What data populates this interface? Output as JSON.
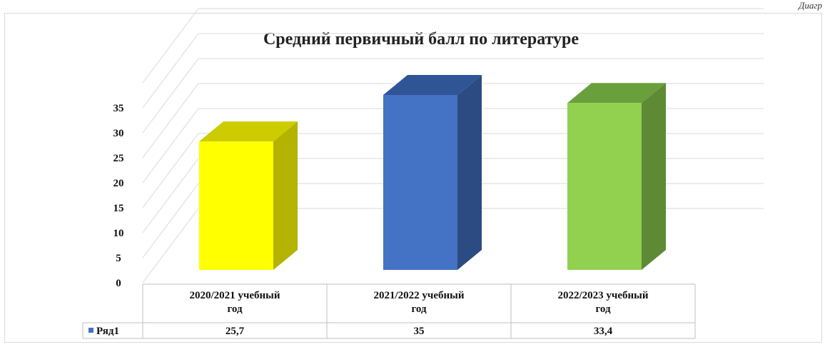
{
  "corner_note": "Диагр",
  "chart_data": {
    "type": "bar",
    "title": "Средний первичный балл по литературе",
    "categories": [
      [
        "2020/2021 учебный",
        "год"
      ],
      [
        "2021/2022 учебный",
        "год"
      ],
      [
        "2022/2023 учебный",
        "год"
      ]
    ],
    "series": [
      {
        "name": "Ряд1",
        "values": [
          25.7,
          35,
          33.4
        ],
        "value_labels": [
          "25,7",
          "35",
          "33,4"
        ]
      }
    ],
    "bar_colors": [
      {
        "front": "#ffff00",
        "side": "#b3b300",
        "top": "#cccc00"
      },
      {
        "front": "#4472c4",
        "side": "#2c4b82",
        "top": "#2f5597"
      },
      {
        "front": "#92d050",
        "side": "#5f8a35",
        "top": "#6aa03c"
      }
    ],
    "legend_marker_color": "#4472c4",
    "y_ticks": [
      0,
      5,
      10,
      15,
      20,
      25,
      30,
      35
    ],
    "ylim": [
      0,
      35
    ],
    "grid": true,
    "data_table": true,
    "style": "3d-column"
  }
}
